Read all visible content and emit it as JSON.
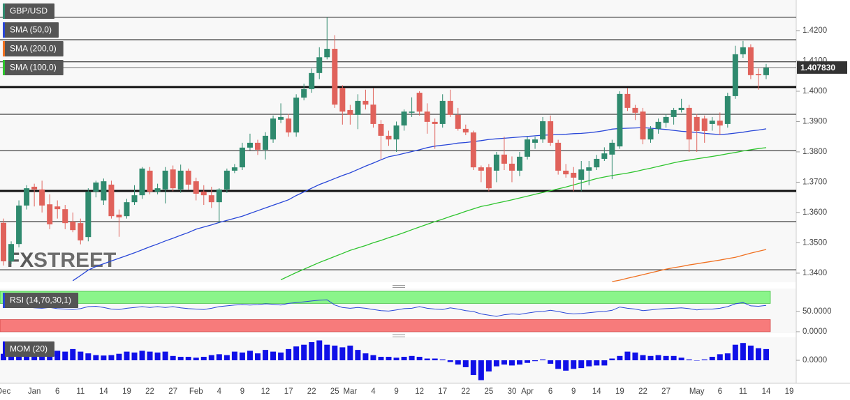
{
  "watermark": [
    "FX",
    "STREET"
  ],
  "chart_data": [
    {
      "type": "candlestick",
      "symbol": "GBP/USD",
      "up_color": "#2f8a6e",
      "down_color": "#e0625b",
      "categories": [
        "Dec",
        null,
        null,
        null,
        "Jan",
        null,
        null,
        "6",
        null,
        null,
        "11",
        null,
        null,
        "14",
        null,
        null,
        "19",
        null,
        null,
        "22",
        null,
        null,
        "27",
        null,
        null,
        "Feb",
        null,
        null,
        "4",
        null,
        null,
        "9",
        null,
        null,
        "12",
        null,
        null,
        "17",
        null,
        null,
        "22",
        null,
        null,
        "25",
        null,
        "Mar",
        null,
        null,
        "4",
        null,
        null,
        "9",
        null,
        null,
        "12",
        null,
        null,
        "17",
        null,
        null,
        "22",
        null,
        null,
        "25",
        null,
        null,
        "30",
        null,
        "Apr",
        null,
        null,
        "6",
        null,
        null,
        "9",
        null,
        null,
        "14",
        null,
        null,
        "19",
        null,
        null,
        "22",
        null,
        null,
        "27",
        null,
        null,
        null,
        "May",
        null,
        null,
        "6",
        null,
        null,
        "11",
        null,
        null,
        "14",
        null,
        null,
        "19"
      ],
      "open": [
        1.3566,
        1.3439,
        1.3496,
        1.3623,
        1.3685,
        1.3676,
        1.3627,
        1.362,
        1.3611,
        1.357,
        1.3565,
        1.3519,
        1.3669,
        1.364,
        1.3692,
        1.3593,
        1.3588,
        1.3634,
        1.3657,
        1.3738,
        1.3669,
        1.3676,
        1.3742,
        1.3676,
        1.3738,
        1.3703,
        1.3669,
        1.3657,
        1.3634,
        1.3676,
        1.3738,
        1.3749,
        1.3814,
        1.383,
        1.3807,
        1.3841,
        1.3906,
        1.391,
        1.3864,
        1.3979,
        1.4007,
        1.406,
        1.4112,
        1.414,
        1.4011,
        1.3938,
        1.3922,
        1.3968,
        1.3956,
        1.3892,
        1.3853,
        1.3841,
        1.3887,
        1.3929,
        1.3995,
        1.3933,
        1.3899,
        1.3892,
        1.3968,
        1.3922,
        1.3876,
        1.3864,
        1.3749,
        1.3749,
        1.3738,
        1.3791,
        1.3761,
        1.3738,
        1.3784,
        1.383,
        1.3841,
        1.3901,
        1.383,
        1.3738,
        1.3731,
        1.3708,
        1.3738,
        1.3749,
        1.3777,
        1.3791,
        1.3818,
        1.3991,
        1.3945,
        1.3933,
        1.3841,
        1.3876,
        1.3896,
        1.3915,
        1.3938,
        1.3945,
        1.3915,
        1.391,
        1.3892,
        1.3903,
        1.3892,
        1.3984,
        1.4122,
        1.4145,
        1.4057,
        1.4053,
        null,
        null,
        null
      ],
      "high": [
        1.358,
        1.3505,
        1.364,
        1.369,
        1.3695,
        1.3705,
        1.366,
        1.364,
        1.3625,
        1.36,
        1.358,
        1.368,
        1.3705,
        1.3712,
        1.3705,
        1.361,
        1.3645,
        1.369,
        1.375,
        1.375,
        1.3695,
        1.375,
        1.3755,
        1.3758,
        1.3745,
        1.3715,
        1.369,
        1.3685,
        1.368,
        1.3745,
        1.376,
        1.383,
        1.386,
        1.384,
        1.3865,
        1.392,
        1.396,
        1.3925,
        1.399,
        1.4025,
        1.4075,
        1.4145,
        1.4244,
        1.4185,
        1.402,
        1.3955,
        1.399,
        1.4005,
        1.401,
        1.3905,
        1.387,
        1.39,
        1.394,
        1.398,
        1.4,
        1.396,
        1.391,
        1.399,
        1.4005,
        1.3945,
        1.389,
        1.387,
        1.3755,
        1.376,
        1.38,
        1.385,
        1.3785,
        1.38,
        1.385,
        1.385,
        1.3915,
        1.392,
        1.384,
        1.376,
        1.375,
        1.377,
        1.377,
        1.379,
        1.3815,
        1.384,
        1.4,
        1.401,
        1.3955,
        1.3945,
        1.3885,
        1.391,
        1.3925,
        1.3945,
        1.3975,
        1.3955,
        1.3925,
        1.392,
        1.3915,
        1.393,
        1.3995,
        1.415,
        1.4166,
        1.4155,
        1.4075,
        1.409,
        null,
        null,
        null
      ],
      "low": [
        1.3425,
        1.343,
        1.3485,
        1.361,
        1.362,
        1.36,
        1.3545,
        1.358,
        1.3545,
        1.3535,
        1.3495,
        1.3505,
        1.365,
        1.3625,
        1.358,
        1.352,
        1.358,
        1.3625,
        1.3645,
        1.366,
        1.366,
        1.363,
        1.367,
        1.3665,
        1.3675,
        1.364,
        1.3625,
        1.3615,
        1.3565,
        1.3665,
        1.373,
        1.374,
        1.3805,
        1.379,
        1.3775,
        1.383,
        1.3895,
        1.385,
        1.385,
        1.397,
        1.3995,
        1.404,
        1.4105,
        1.3945,
        1.389,
        1.389,
        1.3875,
        1.394,
        1.388,
        1.3775,
        1.382,
        1.38,
        1.387,
        1.3915,
        1.392,
        1.386,
        1.381,
        1.388,
        1.3915,
        1.387,
        1.3855,
        1.374,
        1.37,
        1.367,
        1.37,
        1.374,
        1.37,
        1.372,
        1.3775,
        1.381,
        1.383,
        1.382,
        1.3725,
        1.3715,
        1.367,
        1.367,
        1.369,
        1.374,
        1.377,
        1.371,
        1.381,
        1.3935,
        1.3905,
        1.3825,
        1.383,
        1.386,
        1.388,
        1.389,
        1.393,
        1.38,
        1.38,
        1.383,
        1.387,
        1.3855,
        1.388,
        1.3975,
        1.411,
        1.404,
        1.4005,
        1.404,
        null,
        null,
        null
      ],
      "close": [
        1.3439,
        1.3496,
        1.3623,
        1.368,
        1.3676,
        1.3623,
        1.3561,
        1.3611,
        1.3565,
        1.3542,
        1.3508,
        1.3669,
        1.3699,
        1.3703,
        1.3588,
        1.3584,
        1.3634,
        1.3657,
        1.3745,
        1.3669,
        1.368,
        1.3738,
        1.368,
        1.3738,
        1.3692,
        1.3662,
        1.3657,
        1.3634,
        1.3676,
        1.3738,
        1.3749,
        1.3814,
        1.383,
        1.3807,
        1.3853,
        1.391,
        1.3915,
        1.3864,
        1.3979,
        1.4007,
        1.406,
        1.4112,
        1.414,
        1.3956,
        1.3933,
        1.3922,
        1.3968,
        1.3956,
        1.3892,
        1.3853,
        1.3841,
        1.3887,
        1.3933,
        1.3933,
        1.3933,
        1.3899,
        1.3892,
        1.3968,
        1.3922,
        1.3876,
        1.3864,
        1.3749,
        1.3738,
        1.368,
        1.3791,
        1.3761,
        1.3738,
        1.3784,
        1.3841,
        1.3841,
        1.3901,
        1.383,
        1.3738,
        1.3726,
        1.3715,
        1.3742,
        1.3749,
        1.3777,
        1.3795,
        1.383,
        1.3991,
        1.3945,
        1.3929,
        1.3841,
        1.3876,
        1.3899,
        1.3915,
        1.3938,
        1.3945,
        1.3841,
        1.3869,
        1.3869,
        1.3903,
        1.3887,
        1.3984,
        1.4122,
        1.4145,
        1.4053,
        1.4053,
        1.4078,
        null,
        null,
        null
      ],
      "series": [
        {
          "name": "SMA (50,0)",
          "color": "#2846d8",
          "values": [
            null,
            null,
            null,
            null,
            null,
            null,
            null,
            null,
            null,
            1.3375,
            1.3392,
            1.341,
            1.3422,
            1.3431,
            1.344,
            1.3449,
            1.3458,
            1.3467,
            1.3477,
            1.3487,
            1.3496,
            1.3506,
            1.3515,
            1.3525,
            1.3534,
            1.3545,
            1.3552,
            1.3559,
            1.3567,
            1.3574,
            1.3581,
            1.3588,
            1.3597,
            1.3606,
            1.3615,
            1.3624,
            1.3633,
            1.3642,
            1.3656,
            1.3668,
            1.368,
            1.3692,
            1.3702,
            1.3712,
            1.3722,
            1.3731,
            1.3742,
            1.3753,
            1.3763,
            1.3774,
            1.3784,
            1.3789,
            1.3795,
            1.3801,
            1.3807,
            1.3814,
            1.3819,
            1.3822,
            1.3825,
            1.3829,
            1.3831,
            1.3834,
            1.3837,
            1.3841,
            1.3843,
            1.3845,
            1.3847,
            1.3849,
            1.3851,
            1.3853,
            1.3855,
            1.3856,
            1.3857,
            1.3858,
            1.386,
            1.3861,
            1.3863,
            1.3866,
            1.387,
            1.3875,
            1.3877,
            1.3878,
            1.3879,
            1.388,
            1.3878,
            1.3876,
            1.3874,
            1.3871,
            1.3868,
            1.3866,
            1.3864,
            1.3861,
            1.3859,
            1.3857,
            1.3859,
            1.3862,
            1.3865,
            1.3869,
            1.3872,
            1.3876,
            null,
            null,
            null
          ]
        },
        {
          "name": "SMA (200,0)",
          "color": "#f07020",
          "values": [
            null,
            null,
            null,
            null,
            null,
            null,
            null,
            null,
            null,
            null,
            null,
            null,
            null,
            null,
            null,
            null,
            null,
            null,
            null,
            null,
            null,
            null,
            null,
            null,
            null,
            null,
            null,
            null,
            null,
            null,
            null,
            null,
            null,
            null,
            null,
            null,
            null,
            null,
            null,
            null,
            null,
            null,
            null,
            null,
            null,
            null,
            null,
            null,
            null,
            null,
            null,
            null,
            null,
            null,
            null,
            null,
            null,
            null,
            null,
            null,
            null,
            null,
            null,
            null,
            null,
            null,
            null,
            null,
            null,
            null,
            null,
            null,
            null,
            null,
            null,
            null,
            null,
            null,
            null,
            1.3372,
            1.3377,
            1.3383,
            1.3389,
            1.3395,
            1.3401,
            1.3407,
            1.3413,
            1.3418,
            1.3422,
            1.3427,
            1.3431,
            1.3435,
            1.3439,
            1.3443,
            1.3448,
            1.3452,
            1.3459,
            1.3466,
            1.3472,
            1.3478,
            null,
            null,
            null
          ]
        },
        {
          "name": "SMA (100,0)",
          "color": "#2ec42e",
          "values": [
            null,
            null,
            null,
            null,
            null,
            null,
            null,
            null,
            null,
            null,
            null,
            null,
            null,
            null,
            null,
            null,
            null,
            null,
            null,
            null,
            null,
            null,
            null,
            null,
            null,
            null,
            null,
            null,
            null,
            null,
            null,
            null,
            null,
            null,
            null,
            null,
            1.3378,
            1.339,
            1.3402,
            1.3413,
            1.3424,
            1.3435,
            1.3445,
            1.3455,
            1.3465,
            1.3475,
            1.3483,
            1.3491,
            1.35,
            1.3508,
            1.3517,
            1.3525,
            1.3534,
            1.3543,
            1.3552,
            1.3561,
            1.357,
            1.3578,
            1.3587,
            1.3595,
            1.3604,
            1.3612,
            1.362,
            1.3625,
            1.3631,
            1.3636,
            1.3642,
            1.3648,
            1.3654,
            1.366,
            1.3666,
            1.3672,
            1.3678,
            1.3684,
            1.3691,
            1.3698,
            1.3705,
            1.3712,
            1.3717,
            1.3722,
            1.3726,
            1.373,
            1.3735,
            1.3741,
            1.3746,
            1.3752,
            1.3758,
            1.3764,
            1.3769,
            1.3773,
            1.3777,
            1.3781,
            1.3785,
            1.3789,
            1.3794,
            1.3798,
            1.3803,
            1.3807,
            1.3811,
            1.3814,
            null,
            null,
            null
          ]
        }
      ],
      "levels": [
        {
          "value": 1.4244
        },
        {
          "value": 1.417
        },
        {
          "value": 1.4097
        },
        {
          "value": 1.4014,
          "bold": true
        },
        {
          "value": 1.3924
        },
        {
          "value": 1.3804
        },
        {
          "value": 1.3671,
          "bold": true
        },
        {
          "value": 1.357
        },
        {
          "value": 1.3411
        }
      ],
      "last_price": {
        "value": 1.40783,
        "label": "1.407830"
      },
      "ylim": [
        1.337,
        1.4301
      ],
      "yticks": [
        {
          "value": 1.42,
          "label": "1.4200"
        },
        {
          "value": 1.41,
          "label": "1.4100"
        },
        {
          "value": 1.4,
          "label": "1.4000"
        },
        {
          "value": 1.39,
          "label": "1.3900"
        },
        {
          "value": 1.38,
          "label": "1.3800"
        },
        {
          "value": 1.37,
          "label": "1.3700"
        },
        {
          "value": 1.36,
          "label": "1.3600"
        },
        {
          "value": 1.35,
          "label": "1.3500"
        },
        {
          "value": 1.34,
          "label": "1.3400"
        }
      ]
    },
    {
      "type": "line",
      "name": "RSI (14,70,30,1)",
      "color": "#2846d8",
      "overbought": 70,
      "oversold": 30,
      "overbought_color": "#8af58a",
      "oversold_color": "#f77b7b",
      "values": [
        60,
        62,
        63,
        61,
        59,
        58,
        60,
        57,
        56,
        55,
        57,
        62,
        63,
        60,
        56,
        55,
        58,
        60,
        62,
        60,
        62,
        60,
        62,
        59,
        57,
        56,
        55,
        58,
        62,
        64,
        66,
        67,
        66,
        67,
        69,
        68,
        66,
        70,
        72,
        74,
        76,
        78,
        79,
        66,
        60,
        58,
        60,
        58,
        55,
        52,
        51,
        54,
        57,
        58,
        62,
        58,
        56,
        55,
        59,
        56,
        52,
        50,
        44,
        41,
        38,
        42,
        44,
        43,
        46,
        49,
        50,
        53,
        50,
        46,
        44,
        45,
        47,
        49,
        50,
        53,
        61,
        58,
        56,
        52,
        54,
        56,
        57,
        58,
        59,
        57,
        54,
        56,
        56,
        58,
        62,
        69,
        72,
        64,
        63,
        65,
        null,
        null,
        null
      ],
      "ylim": [
        0,
        100
      ],
      "yticks": [
        {
          "value": 50,
          "label": "50.0000"
        },
        {
          "value": 0,
          "label": "0.0000"
        }
      ]
    },
    {
      "type": "bar",
      "name": "MOM (20)",
      "color": "#1010e8",
      "values": [
        0.015,
        0.017,
        0.018,
        0.016,
        0.02,
        0.024,
        0.022,
        0.022,
        0.02,
        0.026,
        0.02,
        0.016,
        0.012,
        0.011,
        0.012,
        0.015,
        0.02,
        0.018,
        0.022,
        0.02,
        0.018,
        0.02,
        0.01,
        0.008,
        0.008,
        0.006,
        0.008,
        0.012,
        0.014,
        0.012,
        0.02,
        0.018,
        0.022,
        0.016,
        0.024,
        0.02,
        0.018,
        0.026,
        0.032,
        0.036,
        0.042,
        0.046,
        0.036,
        0.034,
        0.03,
        0.034,
        0.024,
        0.016,
        0.012,
        0.008,
        0.008,
        0.006,
        0.008,
        0.01,
        0.008,
        0.004,
        0.004,
        0.002,
        -0.004,
        -0.01,
        -0.016,
        -0.034,
        -0.046,
        -0.026,
        -0.014,
        -0.01,
        -0.012,
        -0.01,
        -0.006,
        -0.002,
        0.002,
        -0.008,
        -0.02,
        -0.024,
        -0.02,
        -0.018,
        -0.014,
        -0.012,
        -0.012,
        0.004,
        0.01,
        0.02,
        0.018,
        0.012,
        0.01,
        0.012,
        0.01,
        0.01,
        0.006,
        0.002,
        0.0,
        0.002,
        0.008,
        0.014,
        0.016,
        0.036,
        0.04,
        0.034,
        0.028,
        0.026,
        null,
        null,
        null
      ],
      "ylim": [
        -0.05,
        0.05
      ],
      "yticks": [
        {
          "value": 0,
          "label": "0.0000"
        }
      ]
    }
  ]
}
